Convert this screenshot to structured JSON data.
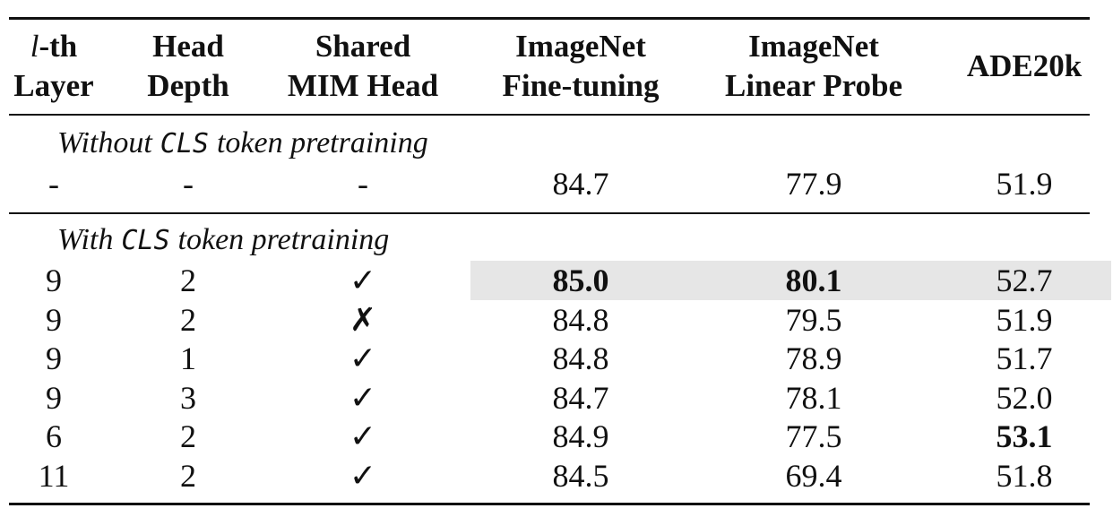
{
  "table": {
    "headers": [
      {
        "lines": [
          [
            "l",
            "-th"
          ],
          "Layer"
        ]
      },
      {
        "lines": [
          "Head",
          "Depth"
        ]
      },
      {
        "lines": [
          "Shared",
          "MIM Head"
        ]
      },
      {
        "lines": [
          "ImageNet",
          "Fine-tuning"
        ]
      },
      {
        "lines": [
          "ImageNet",
          "Linear Probe"
        ]
      },
      {
        "lines": [
          "ADE20k"
        ]
      }
    ],
    "sections": [
      {
        "title": [
          "Without",
          "CLS",
          "token pretraining"
        ],
        "rows": [
          {
            "cells": [
              "-",
              "-",
              "-",
              "84.7",
              "77.9",
              "51.9"
            ]
          }
        ]
      },
      {
        "title": [
          "With",
          "CLS",
          "token pretraining"
        ],
        "rows": [
          {
            "cells": [
              "9",
              "2",
              "✓",
              "85.0",
              "80.1",
              "52.7"
            ],
            "bold": [
              3,
              4
            ],
            "highlight": true
          },
          {
            "cells": [
              "9",
              "2",
              "✗",
              "84.8",
              "79.5",
              "51.9"
            ]
          },
          {
            "cells": [
              "9",
              "1",
              "✓",
              "84.8",
              "78.9",
              "51.7"
            ]
          },
          {
            "cells": [
              "9",
              "3",
              "✓",
              "84.7",
              "78.1",
              "52.0"
            ]
          },
          {
            "cells": [
              "6",
              "2",
              "✓",
              "84.9",
              "77.5",
              "53.1"
            ],
            "bold": [
              5
            ]
          },
          {
            "cells": [
              "11",
              "2",
              "✓",
              "84.5",
              "69.4",
              "51.8"
            ]
          }
        ]
      }
    ]
  }
}
